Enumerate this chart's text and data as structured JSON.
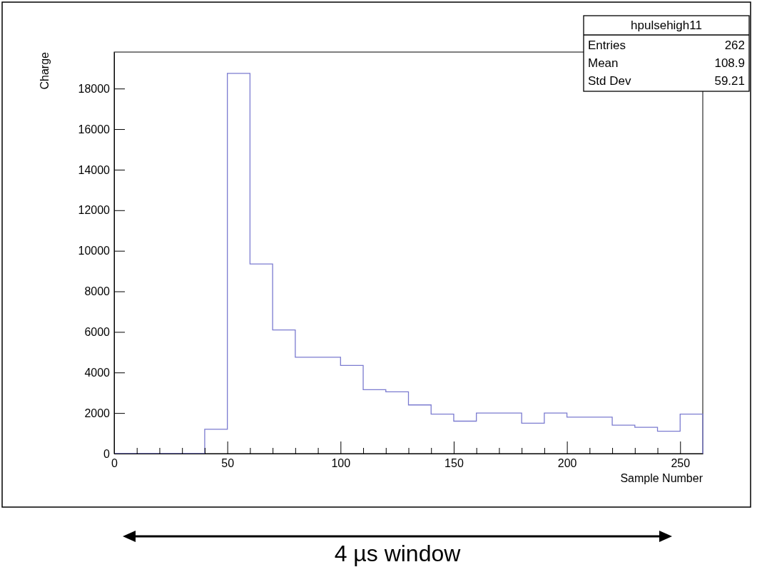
{
  "chart_data": {
    "type": "histogram",
    "title": "hpulsehigh11",
    "xlabel": "Sample Number",
    "ylabel": "Charge",
    "bins": [
      0,
      10,
      20,
      30,
      40,
      50,
      60,
      70,
      80,
      90,
      100,
      110,
      120,
      130,
      140,
      150,
      160,
      170,
      180,
      190,
      200,
      210,
      220,
      230,
      240,
      250,
      260
    ],
    "values": [
      0,
      0,
      0,
      0,
      1200,
      18750,
      9350,
      6100,
      4750,
      4750,
      4350,
      3150,
      3050,
      2400,
      1950,
      1600,
      2000,
      2000,
      1500,
      2000,
      1800,
      1800,
      1400,
      1300,
      1100,
      1950
    ],
    "color": "#7b7bd0",
    "xlim": [
      0,
      260
    ],
    "xticks": [
      0,
      {
        "value": 10,
        "label": null
      },
      {
        "value": 20,
        "label": null
      },
      {
        "value": 30,
        "label": null
      },
      {
        "value": 40,
        "label": null
      },
      50,
      {
        "value": 60,
        "label": null
      },
      {
        "value": 70,
        "label": null
      },
      {
        "value": 80,
        "label": null
      },
      {
        "value": 90,
        "label": null
      },
      100,
      {
        "value": 110,
        "label": null
      },
      {
        "value": 120,
        "label": null
      },
      {
        "value": 130,
        "label": null
      },
      {
        "value": 140,
        "label": null
      },
      150,
      {
        "value": 160,
        "label": null
      },
      {
        "value": 170,
        "label": null
      },
      {
        "value": 180,
        "label": null
      },
      {
        "value": 190,
        "label": null
      },
      200,
      {
        "value": 210,
        "label": null
      },
      {
        "value": 220,
        "label": null
      },
      {
        "value": 230,
        "label": null
      },
      {
        "value": 240,
        "label": null
      },
      250
    ],
    "ylim": [
      0,
      19800
    ],
    "yticks": [
      0,
      2000,
      4000,
      6000,
      8000,
      10000,
      12000,
      14000,
      16000,
      18000
    ],
    "grid": false,
    "annotations": [
      "Entries",
      "262",
      "Mean",
      "108.9",
      "Std Dev",
      "59.21",
      "4 µs window"
    ]
  }
}
